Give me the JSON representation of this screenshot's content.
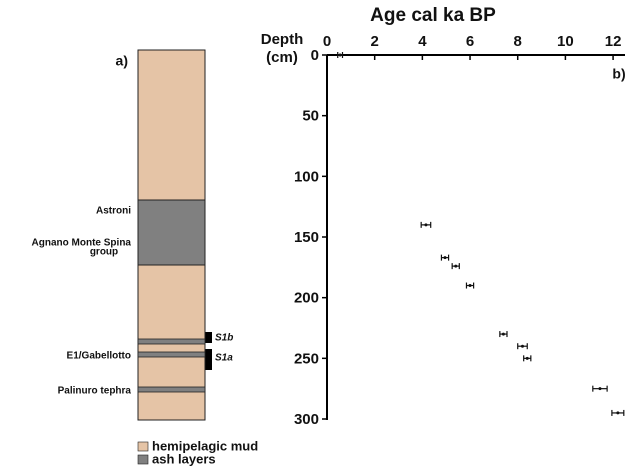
{
  "chart_data": {
    "type": "scatter",
    "title": "Age cal ka BP",
    "ylabel": [
      "Depth",
      "(cm)"
    ],
    "panel_label": "b)",
    "x": [
      0.55,
      4.15,
      4.95,
      5.4,
      6.0,
      7.4,
      8.2,
      8.4,
      11.45,
      12.2
    ],
    "values": [
      0,
      140,
      167,
      174,
      190,
      230,
      240,
      250,
      275,
      295
    ],
    "xerr": [
      0.1,
      0.2,
      0.15,
      0.15,
      0.15,
      0.15,
      0.2,
      0.15,
      0.3,
      0.25
    ],
    "color": "#111111",
    "xlim": [
      0,
      12.5
    ],
    "xticks": [
      0,
      2,
      4,
      6,
      8,
      10,
      12
    ],
    "ylim": [
      0,
      300
    ],
    "yticks": [
      0,
      50,
      100,
      150,
      200,
      250,
      300
    ]
  },
  "core": {
    "panel_label": "a)",
    "tephra_labels": [
      "Astroni",
      "Agnano Monte Spina",
      "group",
      "E1/Gabellotto",
      "Palinuro tephra"
    ],
    "sapropels": [
      "S1b",
      "S1a"
    ],
    "legend": [
      {
        "name": "hemipelagic mud",
        "color": "#e5c4a6"
      },
      {
        "name": "ash layers",
        "color": "#808080"
      }
    ]
  }
}
